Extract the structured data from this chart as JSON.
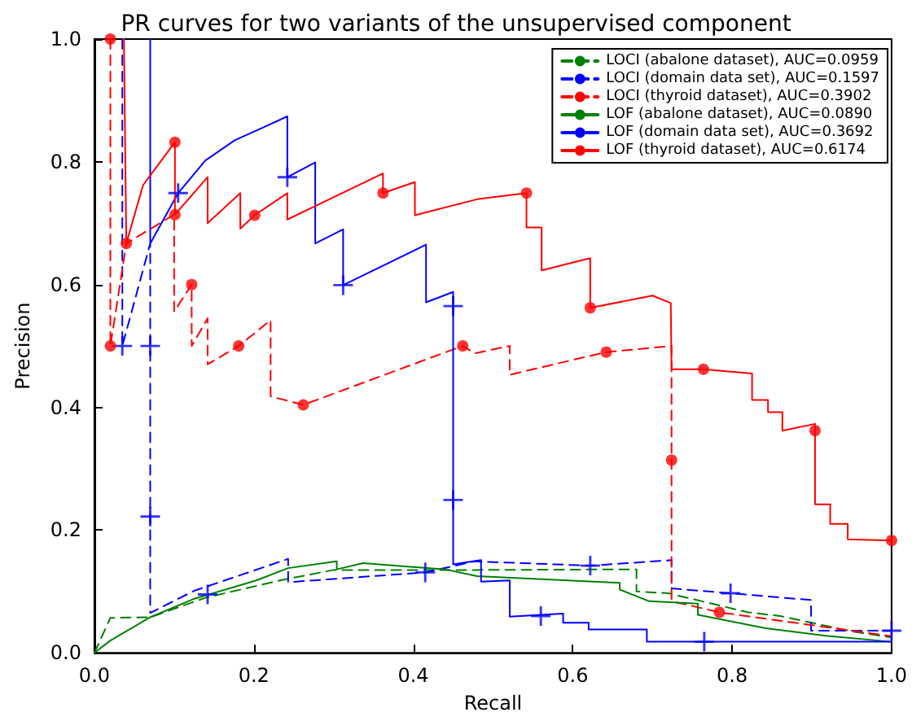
{
  "chart_data": {
    "type": "line",
    "title": "PR curves for two variants of the unsupervised component",
    "xlabel": "Recall",
    "ylabel": "Precision",
    "xlim": [
      0,
      1
    ],
    "ylim": [
      0,
      1
    ],
    "xticks": [
      {
        "value": 0,
        "label": "0.0"
      },
      0.2,
      0.4,
      0.6,
      0.8,
      {
        "value": 1,
        "label": "1.0"
      }
    ],
    "yticks": [
      {
        "value": 0,
        "label": "0.0"
      },
      0.2,
      0.4,
      0.6,
      0.8,
      {
        "value": 1,
        "label": "1.0"
      }
    ],
    "grid": false,
    "legend": "top right",
    "series": [
      {
        "name": "LOCI (abalone dataset), AUC=0.0959",
        "color": "#008000",
        "line_style": "dashed",
        "x": [
          0.0,
          0.02,
          0.07,
          0.14,
          0.24,
          0.3,
          0.48,
          0.68,
          0.68,
          0.72,
          0.82,
          0.86,
          0.95,
          1.0
        ],
        "values": [
          0.0,
          0.057,
          0.058,
          0.09,
          0.12,
          0.135,
          0.135,
          0.136,
          0.1,
          0.097,
          0.066,
          0.06,
          0.035,
          0.025
        ]
      },
      {
        "name": "LOCI (domain data set), AUC=0.1597",
        "color": "#0000ff",
        "line_style": "dashed",
        "x": [
          0.035,
          0.035,
          0.07,
          0.07,
          0.125,
          0.243,
          0.243,
          0.415,
          0.477,
          0.622,
          0.724,
          0.724,
          0.798,
          0.899,
          0.899,
          1.0
        ],
        "values": [
          1.0,
          0.5,
          0.667,
          0.065,
          0.101,
          0.153,
          0.115,
          0.131,
          0.149,
          0.142,
          0.151,
          0.105,
          0.097,
          0.086,
          0.036,
          0.036
        ]
      },
      {
        "name": "LOCI (thyroid dataset), AUC=0.3902",
        "color": "#ff0000",
        "line_style": "dashed",
        "x": [
          0.02,
          0.02,
          0.04,
          0.1,
          0.1,
          0.122,
          0.122,
          0.142,
          0.142,
          0.181,
          0.221,
          0.221,
          0.262,
          0.462,
          0.477,
          0.521,
          0.521,
          0.642,
          0.724,
          0.724,
          0.784,
          1.0
        ],
        "values": [
          1.0,
          0.5,
          0.667,
          0.714,
          0.556,
          0.6,
          0.5,
          0.545,
          0.47,
          0.5,
          0.542,
          0.418,
          0.404,
          0.5,
          0.488,
          0.5,
          0.453,
          0.49,
          0.5,
          0.084,
          0.066,
          0.027
        ]
      },
      {
        "name": "LOF (abalone dataset), AUC=0.0890",
        "color": "#008000",
        "line_style": "solid",
        "x": [
          0.0,
          0.02,
          0.07,
          0.125,
          0.203,
          0.243,
          0.304,
          0.304,
          0.337,
          0.44,
          0.48,
          0.659,
          0.659,
          0.696,
          0.757,
          0.757,
          0.842,
          0.923,
          1.0
        ],
        "values": [
          0.0,
          0.02,
          0.058,
          0.088,
          0.118,
          0.138,
          0.149,
          0.136,
          0.146,
          0.136,
          0.125,
          0.114,
          0.103,
          0.084,
          0.08,
          0.062,
          0.04,
          0.027,
          0.018
        ]
      },
      {
        "name": "LOF (domain data set), AUC=0.3692",
        "color": "#0000ff",
        "line_style": "solid",
        "x": [
          0.07,
          0.07,
          0.105,
          0.139,
          0.176,
          0.21,
          0.242,
          0.242,
          0.277,
          0.277,
          0.312,
          0.312,
          0.416,
          0.416,
          0.45,
          0.45,
          0.485,
          0.485,
          0.521,
          0.521,
          0.588,
          0.588,
          0.62,
          0.62,
          0.693,
          0.693,
          1.0
        ],
        "values": [
          1.0,
          0.667,
          0.749,
          0.802,
          0.835,
          0.855,
          0.874,
          0.775,
          0.799,
          0.667,
          0.69,
          0.599,
          0.665,
          0.571,
          0.588,
          0.144,
          0.151,
          0.116,
          0.118,
          0.059,
          0.064,
          0.049,
          0.049,
          0.038,
          0.038,
          0.018,
          0.018
        ]
      },
      {
        "name": "LOF (thyroid dataset), AUC=0.6174",
        "color": "#ff0000",
        "line_style": "solid",
        "x": [
          0.037,
          0.04,
          0.061,
          0.081,
          0.101,
          0.101,
          0.142,
          0.142,
          0.183,
          0.183,
          0.201,
          0.242,
          0.242,
          0.362,
          0.362,
          0.402,
          0.402,
          0.48,
          0.542,
          0.542,
          0.561,
          0.561,
          0.622,
          0.622,
          0.7,
          0.723,
          0.724,
          0.764,
          0.825,
          0.825,
          0.845,
          0.845,
          0.863,
          0.863,
          0.904,
          0.904,
          0.923,
          0.923,
          0.945,
          0.945,
          1.0
        ],
        "values": [
          1.0,
          0.667,
          0.762,
          0.797,
          0.832,
          0.714,
          0.775,
          0.7,
          0.749,
          0.691,
          0.713,
          0.749,
          0.706,
          0.781,
          0.749,
          0.767,
          0.713,
          0.739,
          0.749,
          0.693,
          0.693,
          0.623,
          0.643,
          0.562,
          0.582,
          0.57,
          0.462,
          0.462,
          0.455,
          0.412,
          0.412,
          0.392,
          0.392,
          0.362,
          0.373,
          0.242,
          0.242,
          0.21,
          0.21,
          0.185,
          0.183
        ]
      },
      {
        "type": "scatter",
        "color": "#0000ff",
        "marker": "cross",
        "x": [
          0.035,
          0.07,
          0.07,
          0.142,
          0.415,
          0.622,
          0.798,
          1.0
        ],
        "values": [
          0.5,
          0.5,
          0.222,
          0.095,
          0.131,
          0.142,
          0.097,
          0.036
        ]
      },
      {
        "type": "scatter",
        "color": "#ff0000",
        "marker": "circle",
        "x": [
          0.02,
          0.02,
          0.122,
          0.181,
          0.262,
          0.462,
          0.642,
          0.724,
          0.784
        ],
        "values": [
          1.0,
          0.5,
          0.6,
          0.5,
          0.404,
          0.5,
          0.49,
          0.314,
          0.066
        ]
      },
      {
        "type": "scatter",
        "color": "#0000ff",
        "marker": "cross",
        "x": [
          0.105,
          0.242,
          0.312,
          0.45,
          0.45,
          0.56,
          0.765
        ],
        "values": [
          0.749,
          0.775,
          0.599,
          0.565,
          0.249,
          0.06,
          0.018
        ]
      },
      {
        "type": "scatter",
        "color": "#ff0000",
        "marker": "circle",
        "x": [
          0.04,
          0.101,
          0.101,
          0.201,
          0.362,
          0.542,
          0.622,
          0.764,
          0.904,
          1.0
        ],
        "values": [
          0.667,
          0.832,
          0.714,
          0.713,
          0.749,
          0.749,
          0.562,
          0.462,
          0.362,
          0.183
        ]
      }
    ]
  }
}
